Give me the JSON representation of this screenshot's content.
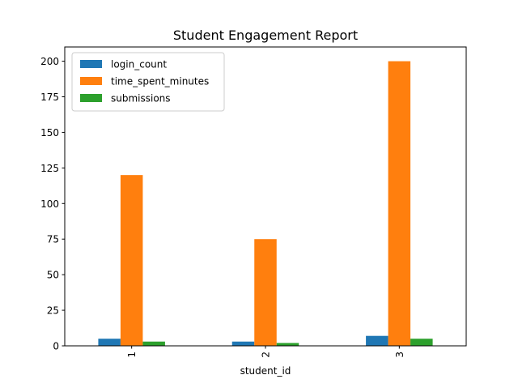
{
  "chart_data": {
    "type": "bar",
    "title": "Student Engagement Report",
    "xlabel": "student_id",
    "ylabel": "",
    "categories": [
      "1",
      "2",
      "3"
    ],
    "series": [
      {
        "name": "login_count",
        "color": "#1f77b4",
        "values": [
          5,
          3,
          7
        ]
      },
      {
        "name": "time_spent_minutes",
        "color": "#ff7f0e",
        "values": [
          120,
          75,
          200
        ]
      },
      {
        "name": "submissions",
        "color": "#2ca02c",
        "values": [
          3,
          2,
          5
        ]
      }
    ],
    "ylim": [
      0,
      210
    ],
    "yticks": [
      0,
      25,
      50,
      75,
      100,
      125,
      150,
      175,
      200
    ],
    "x_tick_rotation": 90,
    "grid": false,
    "legend_position": "top-left"
  }
}
